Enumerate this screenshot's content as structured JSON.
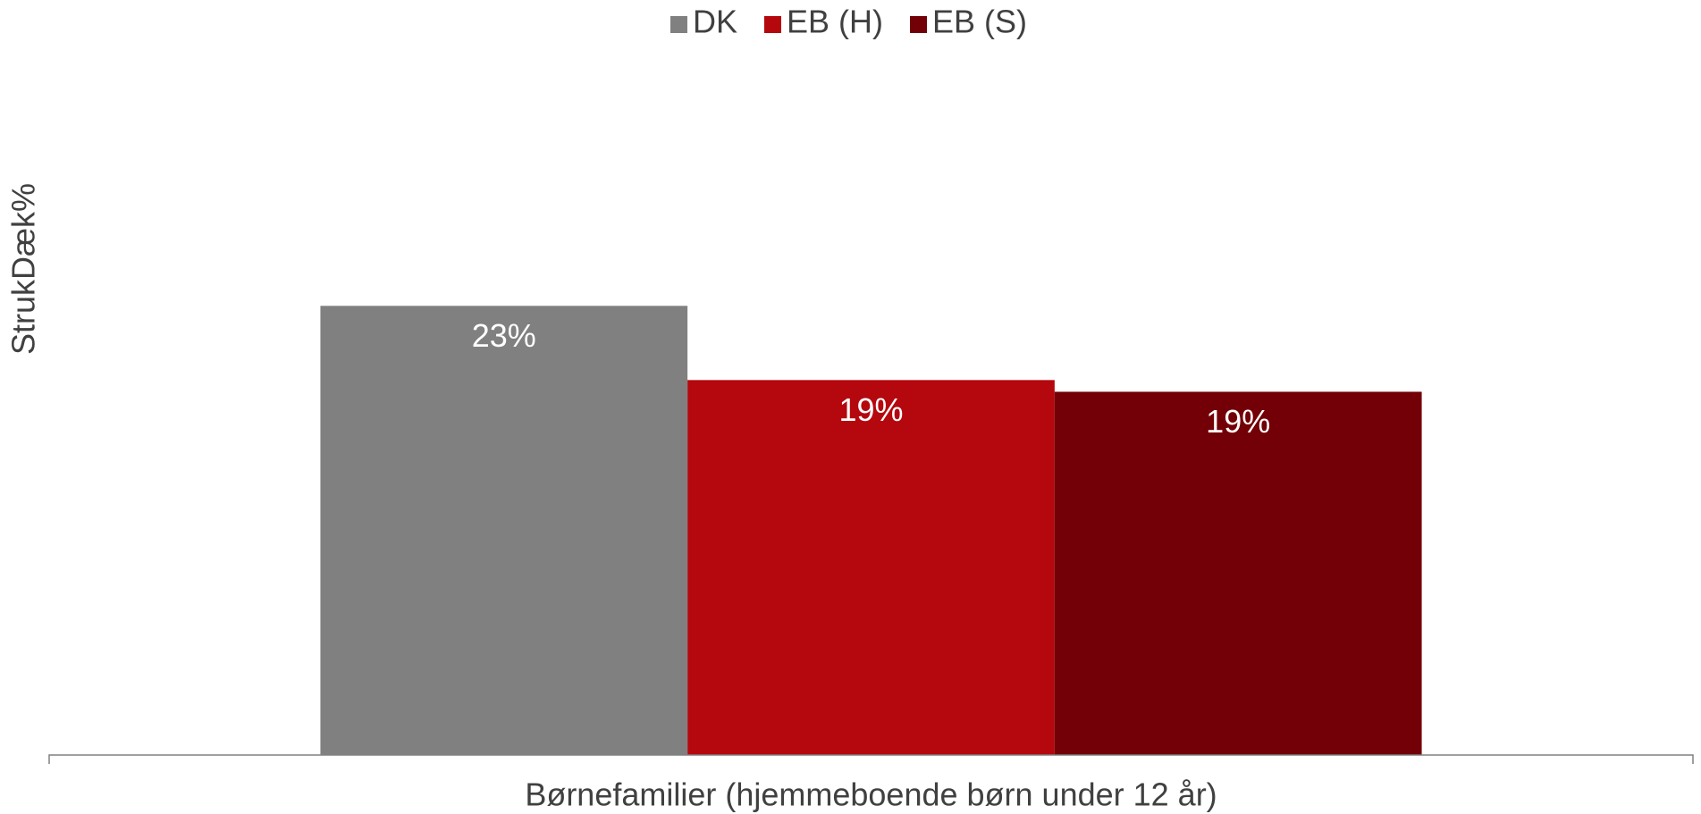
{
  "chart_data": {
    "type": "bar",
    "y_label": "StrukDæk%",
    "categories": [
      "Børnefamilier (hjemmeboende børn under 12 år)"
    ],
    "series": [
      {
        "name": "DK",
        "color": "#808080",
        "values": [
          23
        ],
        "value_labels": [
          "23%"
        ]
      },
      {
        "name": "EB (H)",
        "color": "#b5070e",
        "values": [
          19.2
        ],
        "value_labels": [
          "19%"
        ]
      },
      {
        "name": "EB (S)",
        "color": "#720006",
        "values": [
          18.6
        ],
        "value_labels": [
          "19%"
        ]
      }
    ],
    "ylim": [
      0,
      35
    ],
    "legend": "top"
  }
}
